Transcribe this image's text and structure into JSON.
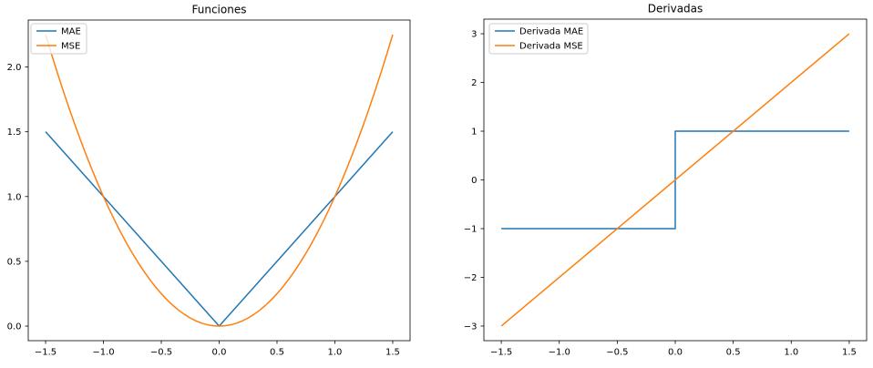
{
  "figure": {
    "background": "#ffffff",
    "accent_blue": "#1f77b4",
    "accent_orange": "#ff7f0e"
  },
  "chart_data": [
    {
      "type": "line",
      "title": "Funciones",
      "xlabel": "",
      "ylabel": "",
      "xlim": [
        -1.65,
        1.65
      ],
      "ylim": [
        -0.1125,
        2.3625
      ],
      "grid": false,
      "legend_position": "upper-left",
      "xticks": {
        "values": [
          -1.5,
          -1.0,
          -0.5,
          0.0,
          0.5,
          1.0,
          1.5
        ],
        "labels": [
          "−1.5",
          "−1.0",
          "−0.5",
          "0.0",
          "0.5",
          "1.0",
          "1.5"
        ]
      },
      "yticks": {
        "values": [
          0.0,
          0.5,
          1.0,
          1.5,
          2.0
        ],
        "labels": [
          "0.0",
          "0.5",
          "1.0",
          "1.5",
          "2.0"
        ]
      },
      "series": [
        {
          "name": "MAE",
          "color": "#1f77b4",
          "points": [
            [
              -1.5,
              1.5
            ],
            [
              0,
              0
            ],
            [
              1.5,
              1.5
            ]
          ]
        },
        {
          "name": "MSE",
          "color": "#ff7f0e",
          "points": [
            [
              -1.5,
              2.25
            ],
            [
              -1.45,
              2.1025
            ],
            [
              -1.4,
              1.96
            ],
            [
              -1.35,
              1.8225
            ],
            [
              -1.3,
              1.69
            ],
            [
              -1.25,
              1.5625
            ],
            [
              -1.2,
              1.44
            ],
            [
              -1.15,
              1.3225
            ],
            [
              -1.1,
              1.21
            ],
            [
              -1.05,
              1.1025
            ],
            [
              -1,
              1
            ],
            [
              -0.95,
              0.9025
            ],
            [
              -0.9,
              0.81
            ],
            [
              -0.85,
              0.7225
            ],
            [
              -0.8,
              0.64
            ],
            [
              -0.75,
              0.5625
            ],
            [
              -0.7,
              0.49
            ],
            [
              -0.65,
              0.4225
            ],
            [
              -0.6,
              0.36
            ],
            [
              -0.55,
              0.3025
            ],
            [
              -0.5,
              0.25
            ],
            [
              -0.45,
              0.2025
            ],
            [
              -0.4,
              0.16
            ],
            [
              -0.35,
              0.1225
            ],
            [
              -0.3,
              0.09
            ],
            [
              -0.25,
              0.0625
            ],
            [
              -0.2,
              0.04
            ],
            [
              -0.15,
              0.0225
            ],
            [
              -0.1,
              0.01
            ],
            [
              -0.05,
              0.0025
            ],
            [
              0,
              0
            ],
            [
              0.05,
              0.0025
            ],
            [
              0.1,
              0.01
            ],
            [
              0.15,
              0.0225
            ],
            [
              0.2,
              0.04
            ],
            [
              0.25,
              0.0625
            ],
            [
              0.3,
              0.09
            ],
            [
              0.35,
              0.1225
            ],
            [
              0.4,
              0.16
            ],
            [
              0.45,
              0.2025
            ],
            [
              0.5,
              0.25
            ],
            [
              0.55,
              0.3025
            ],
            [
              0.6,
              0.36
            ],
            [
              0.65,
              0.4225
            ],
            [
              0.7,
              0.49
            ],
            [
              0.75,
              0.5625
            ],
            [
              0.8,
              0.64
            ],
            [
              0.85,
              0.7225
            ],
            [
              0.9,
              0.81
            ],
            [
              0.95,
              0.9025
            ],
            [
              1,
              1
            ],
            [
              1.05,
              1.1025
            ],
            [
              1.1,
              1.21
            ],
            [
              1.15,
              1.3225
            ],
            [
              1.2,
              1.44
            ],
            [
              1.25,
              1.5625
            ],
            [
              1.3,
              1.69
            ],
            [
              1.35,
              1.8225
            ],
            [
              1.4,
              1.96
            ],
            [
              1.45,
              2.1025
            ],
            [
              1.5,
              2.25
            ]
          ]
        }
      ]
    },
    {
      "type": "line",
      "title": "Derivadas",
      "xlabel": "",
      "ylabel": "",
      "xlim": [
        -1.65,
        1.65
      ],
      "ylim": [
        -3.3,
        3.3
      ],
      "grid": false,
      "legend_position": "upper-left",
      "xticks": {
        "values": [
          -1.5,
          -1.0,
          -0.5,
          0.0,
          0.5,
          1.0,
          1.5
        ],
        "labels": [
          "−1.5",
          "−1.0",
          "−0.5",
          "0.0",
          "0.5",
          "1.0",
          "1.5"
        ]
      },
      "yticks": {
        "values": [
          -3,
          -2,
          -1,
          0,
          1,
          2,
          3
        ],
        "labels": [
          "−3",
          "−2",
          "−1",
          "0",
          "1",
          "2",
          "3"
        ]
      },
      "series": [
        {
          "name": "Derivada MAE",
          "color": "#1f77b4",
          "points": [
            [
              -1.5,
              -1
            ],
            [
              0,
              -1
            ],
            [
              0,
              1
            ],
            [
              1.5,
              1
            ]
          ]
        },
        {
          "name": "Derivada MSE",
          "color": "#ff7f0e",
          "points": [
            [
              -1.5,
              -3
            ],
            [
              1.5,
              3
            ]
          ]
        }
      ]
    }
  ]
}
